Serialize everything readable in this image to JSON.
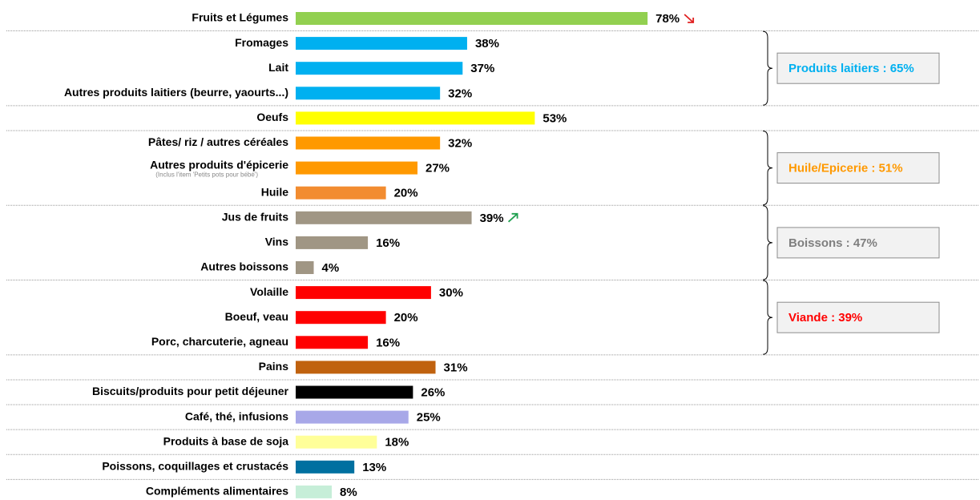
{
  "chart_data": {
    "type": "bar",
    "orientation": "horizontal",
    "groups": [
      {
        "categories": [
          "Fruits et Légumes"
        ],
        "values": [
          78
        ],
        "value_labels": [
          "78%"
        ],
        "colors": [
          "#92d050"
        ],
        "trends": [
          "down"
        ]
      },
      {
        "label": "Produits laitiers : 65%",
        "label_color": "#00b0f0",
        "categories": [
          "Fromages",
          "Lait",
          "Autres produits laitiers (beurre, yaourts...)"
        ],
        "values": [
          38,
          37,
          32
        ],
        "value_labels": [
          "38%",
          "37%",
          "32%"
        ],
        "colors": [
          "#00b0f0",
          "#00b0f0",
          "#00b0f0"
        ]
      },
      {
        "categories": [
          "Oeufs"
        ],
        "values": [
          53
        ],
        "value_labels": [
          "53%"
        ],
        "colors": [
          "#ffff00"
        ]
      },
      {
        "label": "Huile/Epicerie : 51%",
        "label_color": "#ff9900",
        "categories": [
          "Pâtes/ riz / autres céréales",
          "Autres produits d'épicerie",
          "Huile"
        ],
        "notes": [
          null,
          "(Inclus l'item 'Petits pots pour bébé')",
          null
        ],
        "values": [
          32,
          27,
          20
        ],
        "value_labels": [
          "32%",
          "27%",
          "20%"
        ],
        "colors": [
          "#ff9900",
          "#ff9900",
          "#f28c30"
        ]
      },
      {
        "label": "Boissons : 47%",
        "label_color": "#7f7f7f",
        "categories": [
          "Jus de fruits",
          "Vins",
          "Autres boissons"
        ],
        "values": [
          39,
          16,
          4
        ],
        "value_labels": [
          "39%",
          "16%",
          "4%"
        ],
        "colors": [
          "#a09684",
          "#a09684",
          "#a09684"
        ],
        "trends": [
          "up",
          null,
          null
        ]
      },
      {
        "label": "Viande : 39%",
        "label_color": "#ff0000",
        "categories": [
          "Volaille",
          "Boeuf, veau",
          "Porc, charcuterie, agneau"
        ],
        "values": [
          30,
          20,
          16
        ],
        "value_labels": [
          "30%",
          "20%",
          "16%"
        ],
        "colors": [
          "#ff0000",
          "#ff0000",
          "#ff0000"
        ]
      },
      {
        "categories": [
          "Pains"
        ],
        "values": [
          31
        ],
        "value_labels": [
          "31%"
        ],
        "colors": [
          "#c0620f"
        ]
      },
      {
        "categories": [
          "Biscuits/produits pour petit déjeuner"
        ],
        "values": [
          26
        ],
        "value_labels": [
          "26%"
        ],
        "colors": [
          "#000000"
        ]
      },
      {
        "categories": [
          "Café, thé, infusions"
        ],
        "values": [
          25
        ],
        "value_labels": [
          "25%"
        ],
        "colors": [
          "#a8a8e8"
        ]
      },
      {
        "categories": [
          "Produits à base de soja"
        ],
        "values": [
          18
        ],
        "value_labels": [
          "18%"
        ],
        "colors": [
          "#ffff99"
        ]
      },
      {
        "categories": [
          "Poissons, coquillages et crustacés"
        ],
        "values": [
          13
        ],
        "value_labels": [
          "13%"
        ],
        "colors": [
          "#0070a0"
        ]
      },
      {
        "categories": [
          "Compléments alimentaires"
        ],
        "values": [
          8
        ],
        "value_labels": [
          "8%"
        ],
        "colors": [
          "#c6eed8"
        ]
      }
    ]
  }
}
